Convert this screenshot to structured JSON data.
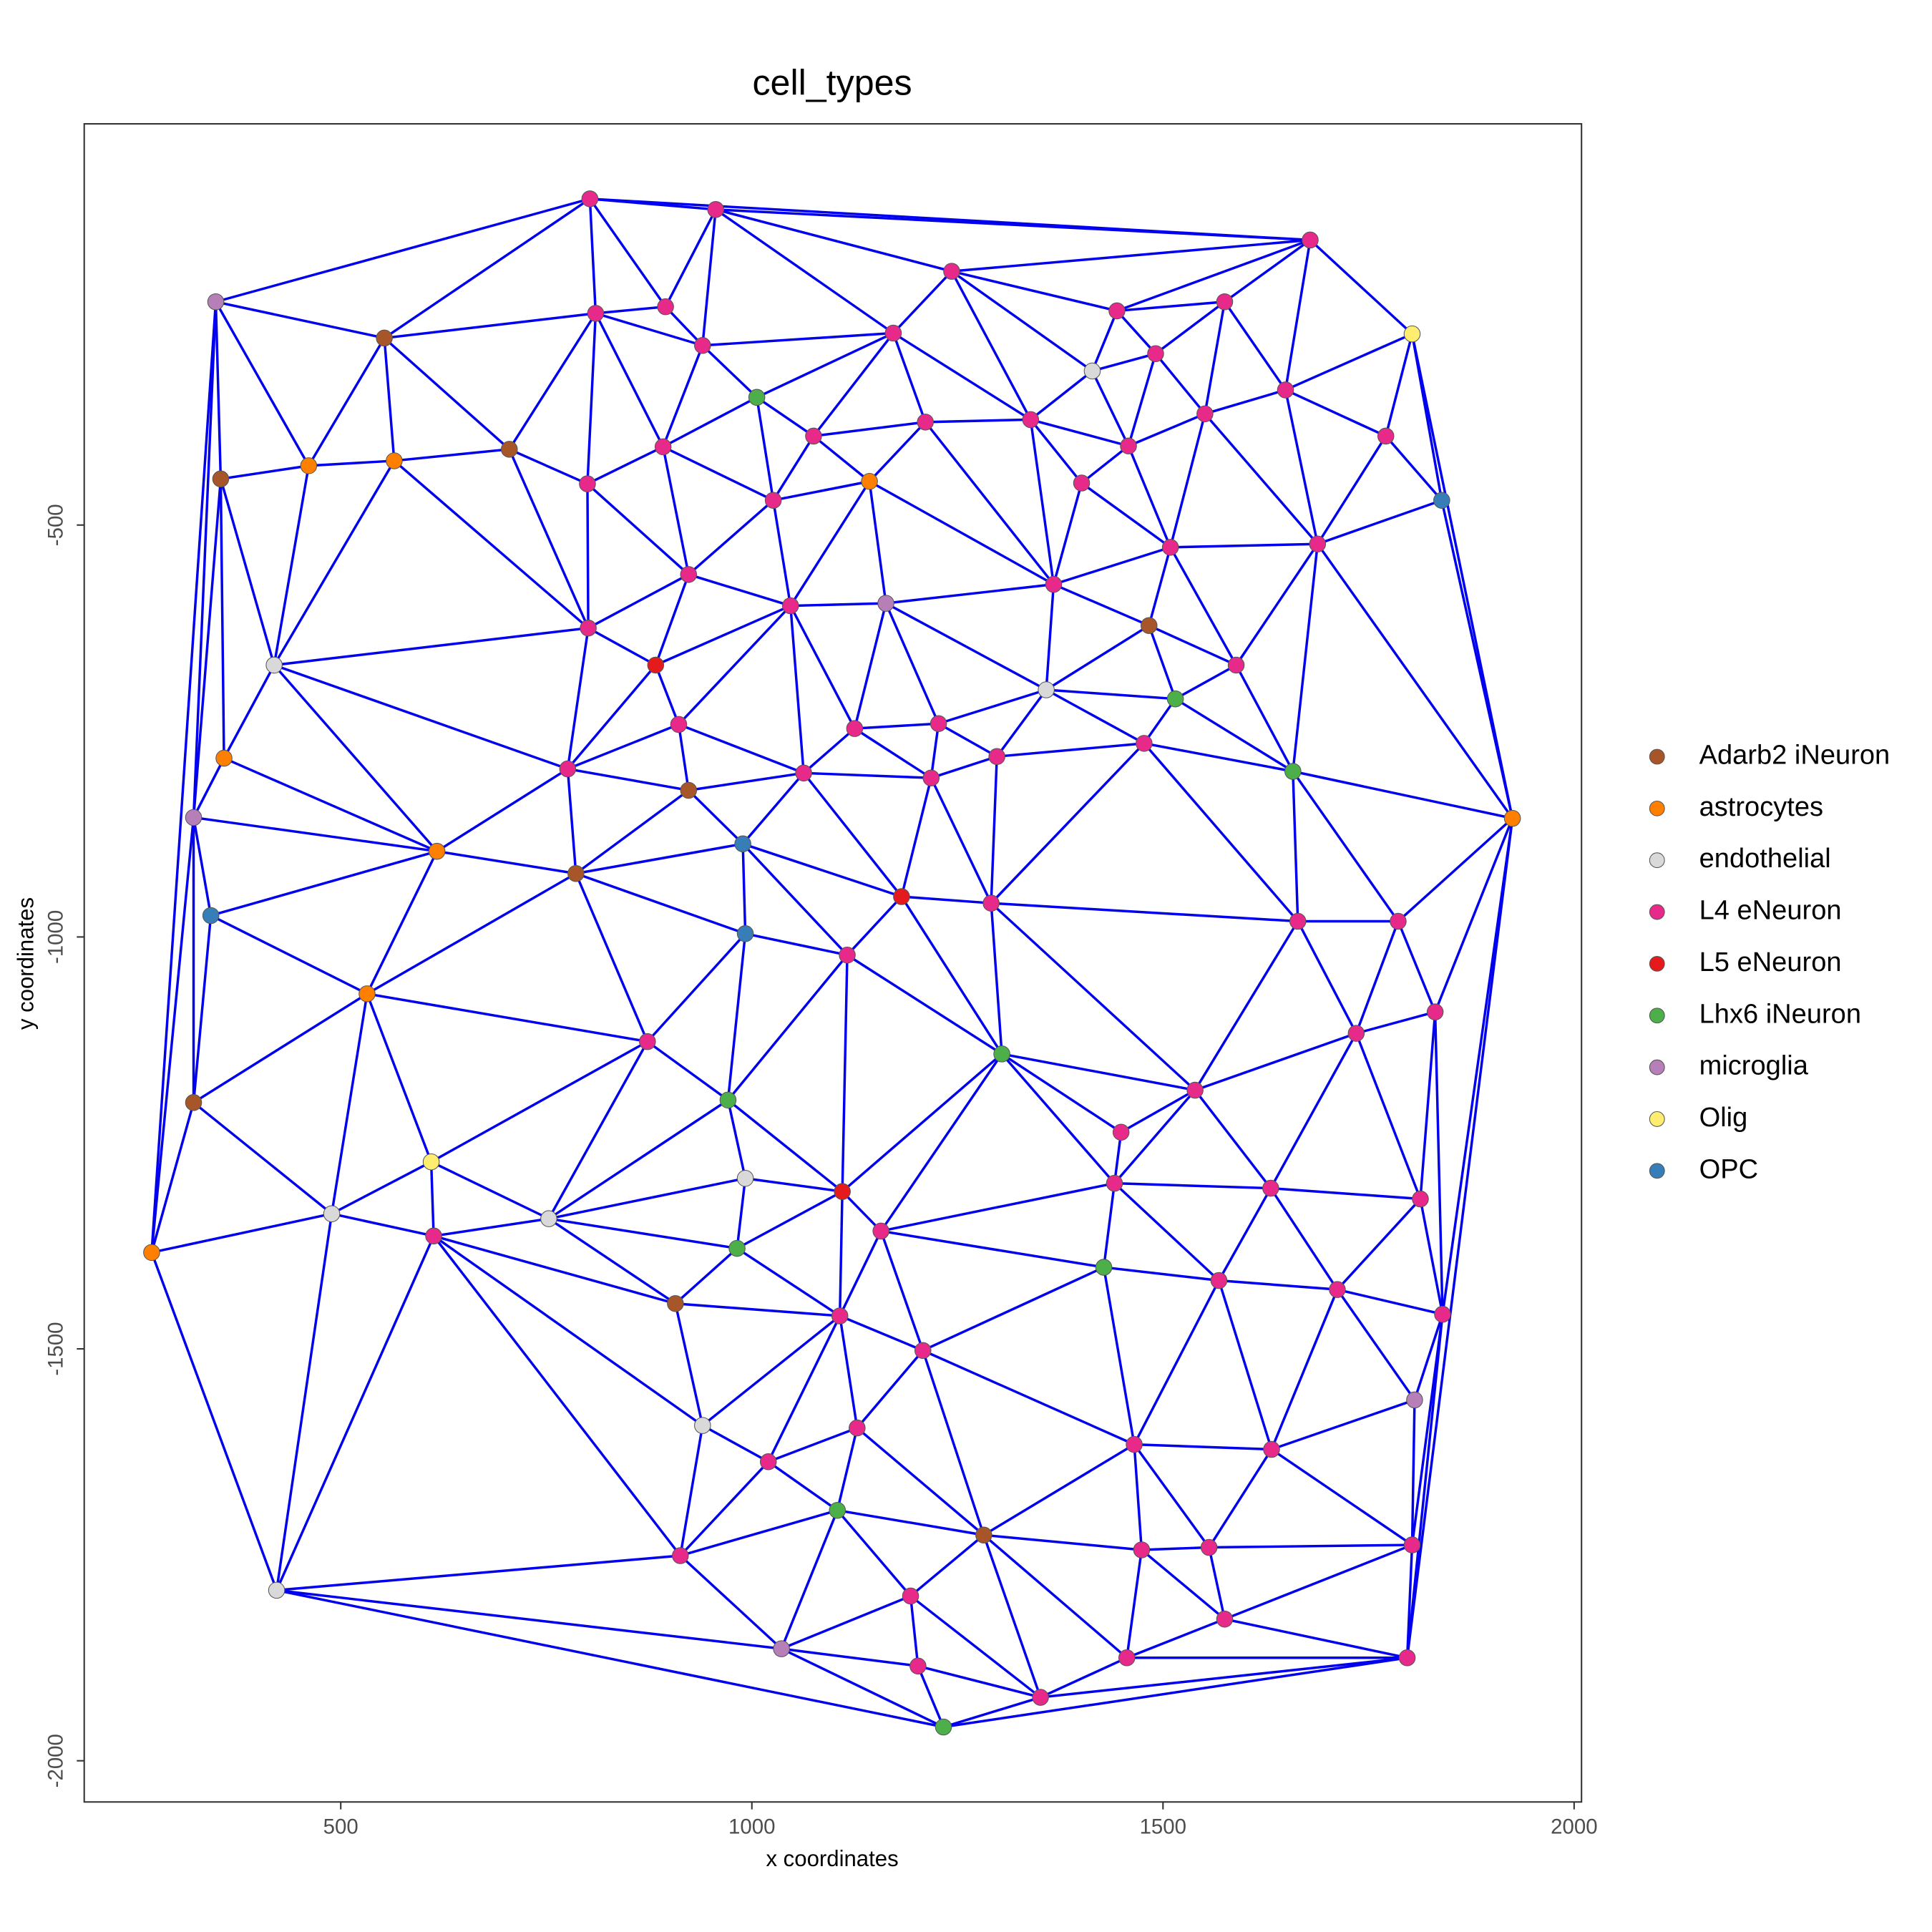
{
  "chart_data": {
    "type": "scatter",
    "title": "cell_types",
    "x_label": "x coordinates",
    "y_label": "y coordinates",
    "xlim": [
      188,
      2009
    ],
    "ylim": [
      -2050,
      -13
    ],
    "xticks": [
      500,
      1000,
      1500,
      2000
    ],
    "yticks": [
      -2000,
      -1500,
      -1000,
      -500
    ],
    "series": [
      {
        "name": "Adarb2 iNeuron",
        "color": "#A65628",
        "x": [
          553,
          705,
          354,
          1483,
          923,
          786,
          321,
          907,
          1282
        ],
        "y": [
          -273,
          -408,
          -444,
          -622,
          -822,
          -923,
          -1201,
          -1445,
          -1726
        ]
      },
      {
        "name": "astrocytes",
        "color": "#FF7F00",
        "x": [
          565,
          461,
          1143,
          358,
          1925,
          617,
          532,
          270
        ],
        "y": [
          -422,
          -428,
          -447,
          -783,
          -856,
          -896,
          -1069,
          -1383
        ]
      },
      {
        "name": "endothelial",
        "color": "#D9D9D9",
        "x": [
          1414,
          419,
          1358,
          992,
          489,
          753,
          940,
          422
        ],
        "y": [
          -313,
          -670,
          -700,
          -1293,
          -1336,
          -1342,
          -1593,
          -1793
        ]
      },
      {
        "name": "L4 eNeuron",
        "color": "#E7298A",
        "x": [
          803,
          956,
          1243,
          1679,
          810,
          895,
          940,
          1172,
          1444,
          1575,
          1491,
          1649,
          1551,
          1339,
          1211,
          1075,
          1771,
          1458,
          892,
          800,
          1401,
          1026,
          1688,
          1509,
          923,
          1367,
          1047,
          801,
          1589,
          911,
          1125,
          1227,
          1298,
          1477,
          776,
          1063,
          1218,
          1291,
          1664,
          1786,
          1116,
          1831,
          1735,
          873,
          1539,
          1449,
          1441,
          1631,
          1813,
          1157,
          613,
          1568,
          1712,
          1840,
          1107,
          1208,
          1128,
          1465,
          1632,
          1020,
          913,
          1474,
          1556,
          1803,
          1193,
          1575,
          1456,
          1797,
          1202,
          1351
        ],
        "y": [
          -104,
          -117,
          -192,
          -154,
          -243,
          -235,
          -282,
          -267,
          -240,
          -229,
          -292,
          -336,
          -365,
          -372,
          -375,
          -392,
          -392,
          -404,
          -405,
          -450,
          -449,
          -470,
          -523,
          -527,
          -560,
          -572,
          -598,
          -625,
          -670,
          -742,
          -747,
          -741,
          -781,
          -765,
          -796,
          -801,
          -807,
          -959,
          -981,
          -981,
          -1022,
          -1091,
          -1117,
          -1127,
          -1186,
          -1237,
          -1299,
          -1305,
          -1318,
          -1357,
          -1363,
          -1417,
          -1428,
          -1458,
          -1460,
          -1502,
          -1596,
          -1616,
          -1622,
          -1637,
          -1751,
          -1744,
          -1741,
          -1738,
          -1800,
          -1828,
          -1875,
          -1875,
          -1885,
          -1923
        ]
      },
      {
        "name": "L5 eNeuron",
        "color": "#E41A1C",
        "x": [
          883,
          1182,
          1110
        ],
        "y": [
          -670,
          -951,
          -1309
        ]
      },
      {
        "name": "Lhx6 iNeuron",
        "color": "#4DAF4A",
        "x": [
          1006,
          1515,
          1658,
          1304,
          971,
          982,
          1428,
          1104,
          1233
        ],
        "y": [
          -345,
          -711,
          -799,
          -1142,
          -1198,
          -1378,
          -1401,
          -1696,
          -1959
        ]
      },
      {
        "name": "microglia",
        "color": "#B77FB8",
        "x": [
          348,
          1163,
          321,
          1806,
          1036
        ],
        "y": [
          -229,
          -595,
          -855,
          -1562,
          -1864
        ]
      },
      {
        "name": "Olig",
        "color": "#FFED6F",
        "x": [
          1803,
          610
        ],
        "y": [
          -268,
          -1273
        ]
      },
      {
        "name": "OPC",
        "color": "#377EB8",
        "x": [
          1839,
          989,
          342,
          992
        ],
        "y": [
          -470,
          -887,
          -974,
          -996
        ]
      }
    ]
  }
}
